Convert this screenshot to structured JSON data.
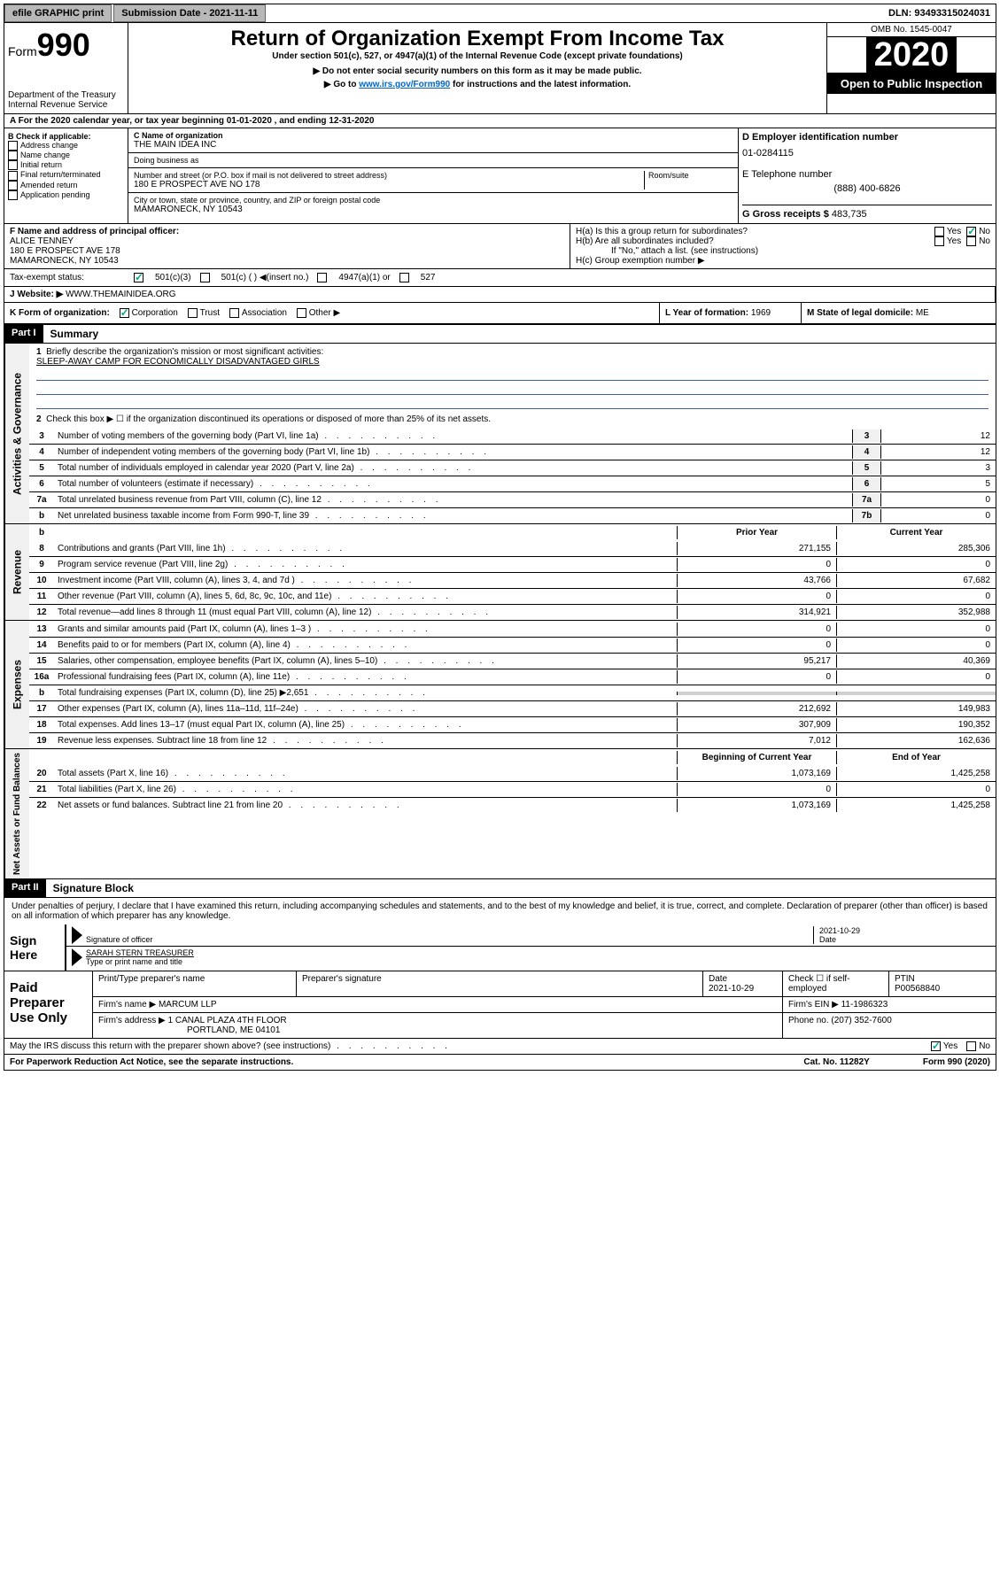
{
  "topbar": {
    "efile": "efile GRAPHIC print",
    "submission": "Submission Date - 2021-11-11",
    "dln": "DLN: 93493315024031"
  },
  "header": {
    "form_label": "Form",
    "form_num": "990",
    "dept": "Department of the Treasury",
    "irs": "Internal Revenue Service",
    "title": "Return of Organization Exempt From Income Tax",
    "subtitle": "Under section 501(c), 527, or 4947(a)(1) of the Internal Revenue Code (except private foundations)",
    "note1": "▶ Do not enter social security numbers on this form as it may be made public.",
    "note2_pre": "▶ Go to ",
    "note2_link": "www.irs.gov/Form990",
    "note2_post": " for instructions and the latest information.",
    "omb": "OMB No. 1545-0047",
    "year": "2020",
    "open": "Open to Public Inspection"
  },
  "row_a": "A   For the 2020 calendar year, or tax year beginning 01-01-2020    , and ending 12-31-2020",
  "section_b": {
    "label": "B Check if applicable:",
    "opts": [
      "Address change",
      "Name change",
      "Initial return",
      "Final return/terminated",
      "Amended return",
      "Application pending"
    ]
  },
  "section_c": {
    "name_label": "C Name of organization",
    "name": "THE MAIN IDEA INC",
    "dba_label": "Doing business as",
    "addr_label": "Number and street (or P.O. box if mail is not delivered to street address)",
    "room_label": "Room/suite",
    "addr": "180 E PROSPECT AVE NO 178",
    "city_label": "City or town, state or province, country, and ZIP or foreign postal code",
    "city": "MAMARONECK, NY  10543"
  },
  "section_d": {
    "ein_label": "D Employer identification number",
    "ein": "01-0284115",
    "phone_label": "E Telephone number",
    "phone": "(888) 400-6826",
    "gross_label": "G Gross receipts $",
    "gross": "483,735"
  },
  "section_f": {
    "label": "F  Name and address of principal officer:",
    "name": "ALICE TENNEY",
    "addr1": "180 E PROSPECT AVE 178",
    "addr2": "MAMARONECK, NY  10543"
  },
  "section_h": {
    "ha": "H(a)  Is this a group return for subordinates?",
    "hb": "H(b)  Are all subordinates included?",
    "hb_note": "If \"No,\" attach a list. (see instructions)",
    "hc": "H(c)  Group exemption number ▶",
    "yes": "Yes",
    "no": "No"
  },
  "tax_status": {
    "label": "Tax-exempt status:",
    "opt1": "501(c)(3)",
    "opt2": "501(c) (   ) ◀(insert no.)",
    "opt3": "4947(a)(1) or",
    "opt4": "527"
  },
  "website": {
    "label": "J   Website: ▶",
    "value": "WWW.THEMAINIDEA.ORG"
  },
  "row_k": {
    "label": "K Form of organization:",
    "opts": [
      "Corporation",
      "Trust",
      "Association",
      "Other ▶"
    ],
    "l_label": "L Year of formation:",
    "l_val": "1969",
    "m_label": "M State of legal domicile:",
    "m_val": "ME"
  },
  "part1": {
    "label": "Part I",
    "title": "Summary",
    "line1": "Briefly describe the organization's mission or most significant activities:",
    "mission": "SLEEP-AWAY CAMP FOR ECONOMICALLY DISADVANTAGED GIRLS",
    "line2": "Check this box ▶ ☐  if the organization discontinued its operations or disposed of more than 25% of its net assets.",
    "v_gov": "Activities & Governance",
    "v_rev": "Revenue",
    "v_exp": "Expenses",
    "v_net": "Net Assets or Fund Balances",
    "lines_gov": [
      {
        "n": "3",
        "t": "Number of voting members of the governing body (Part VI, line 1a)",
        "b": "3",
        "v": "12"
      },
      {
        "n": "4",
        "t": "Number of independent voting members of the governing body (Part VI, line 1b)",
        "b": "4",
        "v": "12"
      },
      {
        "n": "5",
        "t": "Total number of individuals employed in calendar year 2020 (Part V, line 2a)",
        "b": "5",
        "v": "3"
      },
      {
        "n": "6",
        "t": "Total number of volunteers (estimate if necessary)",
        "b": "6",
        "v": "5"
      },
      {
        "n": "7a",
        "t": "Total unrelated business revenue from Part VIII, column (C), line 12",
        "b": "7a",
        "v": "0"
      },
      {
        "n": "b",
        "t": "Net unrelated business taxable income from Form 990-T, line 39",
        "b": "7b",
        "v": "0"
      }
    ],
    "prior_year": "Prior Year",
    "current_year": "Current Year",
    "lines_rev": [
      {
        "n": "8",
        "t": "Contributions and grants (Part VIII, line 1h)",
        "p": "271,155",
        "c": "285,306"
      },
      {
        "n": "9",
        "t": "Program service revenue (Part VIII, line 2g)",
        "p": "0",
        "c": "0"
      },
      {
        "n": "10",
        "t": "Investment income (Part VIII, column (A), lines 3, 4, and 7d )",
        "p": "43,766",
        "c": "67,682"
      },
      {
        "n": "11",
        "t": "Other revenue (Part VIII, column (A), lines 5, 6d, 8c, 9c, 10c, and 11e)",
        "p": "0",
        "c": "0"
      },
      {
        "n": "12",
        "t": "Total revenue—add lines 8 through 11 (must equal Part VIII, column (A), line 12)",
        "p": "314,921",
        "c": "352,988"
      }
    ],
    "lines_exp": [
      {
        "n": "13",
        "t": "Grants and similar amounts paid (Part IX, column (A), lines 1–3 )",
        "p": "0",
        "c": "0"
      },
      {
        "n": "14",
        "t": "Benefits paid to or for members (Part IX, column (A), line 4)",
        "p": "0",
        "c": "0"
      },
      {
        "n": "15",
        "t": "Salaries, other compensation, employee benefits (Part IX, column (A), lines 5–10)",
        "p": "95,217",
        "c": "40,369"
      },
      {
        "n": "16a",
        "t": "Professional fundraising fees (Part IX, column (A), line 11e)",
        "p": "0",
        "c": "0"
      },
      {
        "n": "b",
        "t": "Total fundraising expenses (Part IX, column (D), line 25) ▶2,651",
        "p": "",
        "c": "",
        "shaded": true
      },
      {
        "n": "17",
        "t": "Other expenses (Part IX, column (A), lines 11a–11d, 11f–24e)",
        "p": "212,692",
        "c": "149,983"
      },
      {
        "n": "18",
        "t": "Total expenses. Add lines 13–17 (must equal Part IX, column (A), line 25)",
        "p": "307,909",
        "c": "190,352"
      },
      {
        "n": "19",
        "t": "Revenue less expenses. Subtract line 18 from line 12",
        "p": "7,012",
        "c": "162,636"
      }
    ],
    "beg_year": "Beginning of Current Year",
    "end_year": "End of Year",
    "lines_net": [
      {
        "n": "20",
        "t": "Total assets (Part X, line 16)",
        "p": "1,073,169",
        "c": "1,425,258"
      },
      {
        "n": "21",
        "t": "Total liabilities (Part X, line 26)",
        "p": "0",
        "c": "0"
      },
      {
        "n": "22",
        "t": "Net assets or fund balances. Subtract line 21 from line 20",
        "p": "1,073,169",
        "c": "1,425,258"
      }
    ]
  },
  "part2": {
    "label": "Part II",
    "title": "Signature Block",
    "declaration": "Under penalties of perjury, I declare that I have examined this return, including accompanying schedules and statements, and to the best of my knowledge and belief, it is true, correct, and complete. Declaration of preparer (other than officer) is based on all information of which preparer has any knowledge.",
    "sign_here": "Sign Here",
    "sig_officer": "Signature of officer",
    "date1": "2021-10-29",
    "date_label": "Date",
    "officer_name": "SARAH STERN  TREASURER",
    "type_name": "Type or print name and title",
    "paid": "Paid Preparer Use Only",
    "prep_name_label": "Print/Type preparer's name",
    "prep_sig_label": "Preparer's signature",
    "prep_date_label": "Date",
    "prep_date": "2021-10-29",
    "check_self": "Check ☐ if self-employed",
    "ptin_label": "PTIN",
    "ptin": "P00568840",
    "firm_name_label": "Firm's name    ▶",
    "firm_name": "MARCUM LLP",
    "firm_ein_label": "Firm's EIN ▶",
    "firm_ein": "11-1986323",
    "firm_addr_label": "Firm's address ▶",
    "firm_addr1": "1 CANAL PLAZA 4TH FLOOR",
    "firm_addr2": "PORTLAND, ME  04101",
    "phone_label": "Phone no.",
    "phone": "(207) 352-7600",
    "discuss": "May the IRS discuss this return with the preparer shown above? (see instructions)",
    "yes": "Yes",
    "no": "No"
  },
  "footer": {
    "paperwork": "For Paperwork Reduction Act Notice, see the separate instructions.",
    "cat": "Cat. No. 11282Y",
    "form": "Form 990 (2020)"
  }
}
